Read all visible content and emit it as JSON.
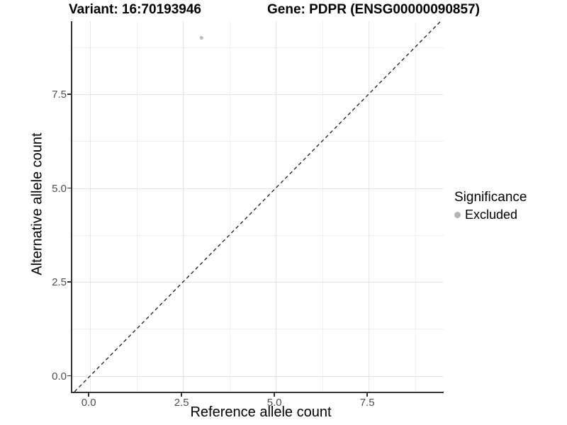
{
  "titles": {
    "variant": "Variant: 16:70193946",
    "gene": "Gene: PDPR (ENSG00000090857)"
  },
  "chart_data": {
    "type": "scatter",
    "xlabel": "Reference allele count",
    "ylabel": "Alternative allele count",
    "xlim": [
      -0.48,
      9.52
    ],
    "ylim": [
      -0.42,
      9.44
    ],
    "x_major_ticks": [
      0,
      2.5,
      5,
      7.5
    ],
    "y_major_ticks": [
      0,
      2.5,
      5,
      7.5
    ],
    "x_minor_ticks": [
      1.25,
      3.75,
      6.25,
      8.75
    ],
    "y_minor_ticks": [
      1.25,
      3.75,
      6.25,
      8.75
    ],
    "x_tick_labels": [
      "0.0",
      "2.5",
      "5.0",
      "7.5"
    ],
    "y_tick_labels": [
      "0.0",
      "2.5",
      "5.0",
      "7.5"
    ],
    "grid": true,
    "series": [
      {
        "name": "Excluded",
        "color": "#bdbdbd",
        "points": [
          [
            3,
            9
          ]
        ]
      }
    ],
    "reference_line": {
      "kind": "identity y = x",
      "style": "dashed",
      "color": "#1a1a1a"
    },
    "legend": {
      "title": "Significance",
      "position": "right",
      "entries": [
        {
          "label": "Excluded",
          "color": "#b3b3b3"
        }
      ]
    }
  },
  "colors": {
    "background": "#ffffff",
    "axis_line": "#333333",
    "grid_major": "#e5e5e5",
    "grid_minor": "#f0f0f0",
    "tick_text": "#4d4d4d",
    "text": "#000000"
  }
}
